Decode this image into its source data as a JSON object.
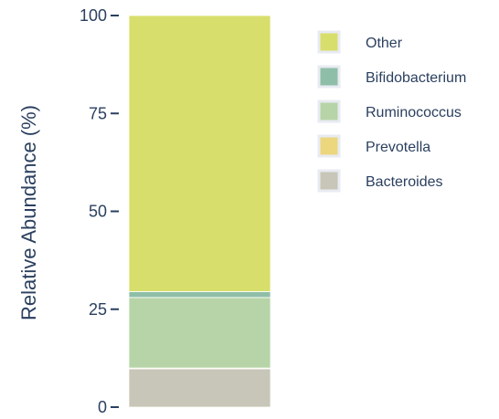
{
  "chart_data": {
    "type": "bar",
    "stacked": true,
    "categories": [
      ""
    ],
    "ylabel": "Relative Abundance (%)",
    "xlabel": "",
    "ylim": [
      0,
      100
    ],
    "yticks": [
      0,
      25,
      50,
      75,
      100
    ],
    "grid": false,
    "legend_position": "right",
    "series": [
      {
        "name": "Bacteroides",
        "values": [
          9.8
        ],
        "color": "#c8c6b8"
      },
      {
        "name": "Prevotella",
        "values": [
          0.2
        ],
        "color": "#ecd67e"
      },
      {
        "name": "Ruminococcus",
        "values": [
          18.0
        ],
        "color": "#b7d4a8"
      },
      {
        "name": "Bifidobacterium",
        "values": [
          1.5
        ],
        "color": "#8fbea8"
      },
      {
        "name": "Other",
        "values": [
          70.5
        ],
        "color": "#d8de6c"
      }
    ],
    "legend_order": [
      "Other",
      "Bifidobacterium",
      "Ruminococcus",
      "Prevotella",
      "Bacteroides"
    ]
  }
}
